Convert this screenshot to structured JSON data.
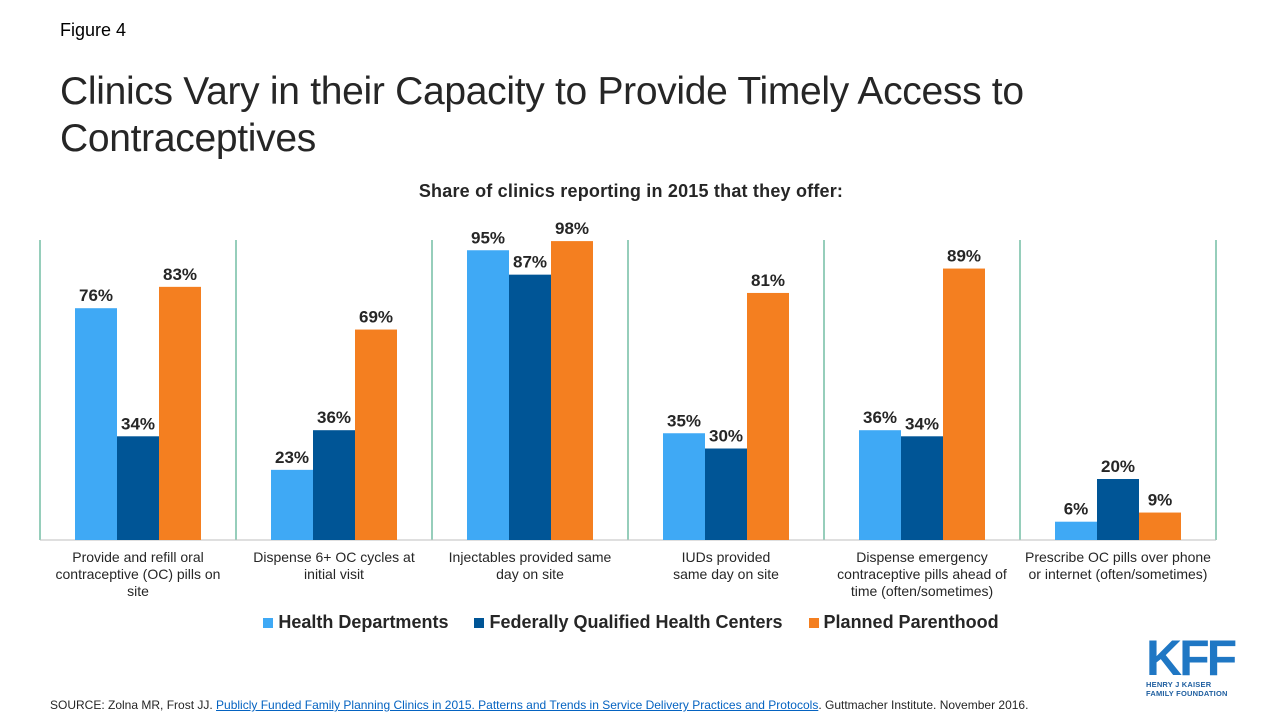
{
  "figure_label": "Figure 4",
  "title": "Clinics Vary in their Capacity to Provide Timely Access to Contraceptives",
  "chart_data": {
    "type": "bar",
    "title": "Share of clinics reporting in 2015 that they offer:",
    "categories": [
      [
        "Provide and refill oral",
        "contraceptive (OC) pills on",
        "site"
      ],
      [
        "Dispense 6+ OC cycles at",
        "initial visit"
      ],
      [
        "Injectables provided same",
        "day on site"
      ],
      [
        "IUDs provided",
        "same day on site"
      ],
      [
        "Dispense emergency",
        "contraceptive pills ahead of",
        "time (often/sometimes)"
      ],
      [
        "Prescribe OC pills over phone",
        "or internet (often/sometimes)"
      ]
    ],
    "series": [
      {
        "name": "Health Departments",
        "color": "#3fa9f5",
        "values": [
          76,
          23,
          95,
          35,
          36,
          6
        ]
      },
      {
        "name": "Federally Qualified Health Centers",
        "color": "#005596",
        "values": [
          34,
          36,
          87,
          30,
          34,
          20
        ]
      },
      {
        "name": "Planned Parenthood",
        "color": "#f47f20",
        "values": [
          83,
          69,
          98,
          81,
          89,
          9
        ]
      }
    ],
    "ylim": [
      0,
      100
    ],
    "value_suffix": "%",
    "grid": false,
    "separator_color": "#2e9e77",
    "legend_position": "bottom"
  },
  "legend": [
    "Health Departments",
    "Federally Qualified Health Centers",
    "Planned Parenthood"
  ],
  "logo": {
    "mark": "KFF",
    "line1": "HENRY J KAISER",
    "line2": "FAMILY FOUNDATION"
  },
  "source": {
    "prefix": "SOURCE: Zolna MR, Frost JJ. ",
    "link_text": "Publicly Funded Family Planning Clinics in 2015. Patterns and Trends in Service Delivery Practices and Protocols",
    "suffix": ". Guttmacher Institute. November 2016."
  }
}
